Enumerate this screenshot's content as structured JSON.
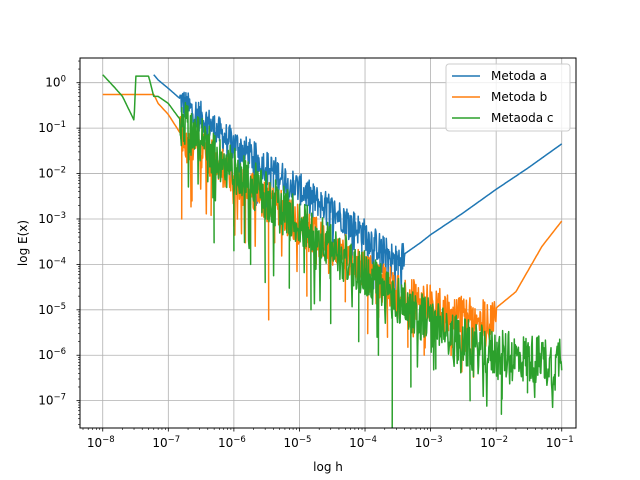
{
  "chart_data": {
    "type": "line",
    "title": "",
    "xlabel": "log h",
    "ylabel": "log E(x)",
    "xscale": "log",
    "yscale": "log",
    "xlim": [
      4.5e-09,
      0.165
    ],
    "ylim": [
      2.5e-08,
      3.5
    ],
    "grid": true,
    "legend_position": "top-right",
    "x_ticks": [
      {
        "value": 1e-08,
        "base": "10",
        "exp": "−8"
      },
      {
        "value": 1e-07,
        "base": "10",
        "exp": "−7"
      },
      {
        "value": 1e-06,
        "base": "10",
        "exp": "−6"
      },
      {
        "value": 1e-05,
        "base": "10",
        "exp": "−5"
      },
      {
        "value": 0.0001,
        "base": "10",
        "exp": "−4"
      },
      {
        "value": 0.001,
        "base": "10",
        "exp": "−3"
      },
      {
        "value": 0.01,
        "base": "10",
        "exp": "−2"
      },
      {
        "value": 0.1,
        "base": "10",
        "exp": "−1"
      }
    ],
    "y_ticks": [
      {
        "value": 1,
        "base": "10",
        "exp": "0"
      },
      {
        "value": 0.1,
        "base": "10",
        "exp": "−1"
      },
      {
        "value": 0.01,
        "base": "10",
        "exp": "−2"
      },
      {
        "value": 0.001,
        "base": "10",
        "exp": "−3"
      },
      {
        "value": 0.0001,
        "base": "10",
        "exp": "−4"
      },
      {
        "value": 1e-05,
        "base": "10",
        "exp": "−5"
      },
      {
        "value": 1e-06,
        "base": "10",
        "exp": "−6"
      },
      {
        "value": 1e-07,
        "base": "10",
        "exp": "−7"
      }
    ],
    "series": [
      {
        "name": "Metoda a",
        "color": "#1f77b4",
        "points": [
          [
            6e-08,
            1.5
          ],
          [
            7e-08,
            1.15
          ],
          [
            1e-07,
            0.75
          ],
          [
            1.5e-07,
            0.45
          ],
          [
            2e-07,
            0.3
          ],
          [
            3e-07,
            0.2
          ],
          [
            5e-07,
            0.11
          ],
          [
            7e-07,
            0.07
          ],
          [
            1e-06,
            0.05
          ],
          [
            2e-06,
            0.025
          ],
          [
            5e-06,
            0.01
          ],
          [
            1e-05,
            0.005
          ],
          [
            2e-05,
            0.0025
          ],
          [
            5e-05,
            0.0011
          ],
          [
            0.0001,
            0.0005
          ],
          [
            0.0002,
            0.0002
          ],
          [
            0.0003,
            0.00013
          ],
          [
            0.0004,
            0.00017
          ],
          [
            0.0007,
            0.0003
          ],
          [
            0.001,
            0.00045
          ],
          [
            0.003,
            0.0013
          ],
          [
            0.01,
            0.0045
          ],
          [
            0.03,
            0.013
          ],
          [
            0.1,
            0.045
          ]
        ],
        "noise": 0.35,
        "dips": [
          [
            9e-07,
            0.006
          ],
          [
            1.2e-06,
            0.004
          ],
          [
            2.2e-06,
            0.002
          ],
          [
            4e-06,
            0.001
          ],
          [
            8e-06,
            0.0006
          ],
          [
            1.6e-05,
            0.0004
          ],
          [
            5e-05,
            0.0002
          ],
          [
            9e-05,
            8e-05
          ],
          [
            0.00017,
            6e-05
          ],
          [
            0.00032,
            5e-05
          ]
        ]
      },
      {
        "name": "Metoda b",
        "color": "#ff7f0e",
        "points": [
          [
            1e-08,
            0.55
          ],
          [
            2e-08,
            0.55
          ],
          [
            4e-08,
            0.55
          ],
          [
            6e-08,
            0.55
          ],
          [
            7e-08,
            0.35
          ],
          [
            1e-07,
            0.2
          ],
          [
            1.5e-07,
            0.08
          ],
          [
            2e-07,
            0.05
          ],
          [
            3e-07,
            0.035
          ],
          [
            5e-07,
            0.02
          ],
          [
            1e-06,
            0.01
          ],
          [
            2e-06,
            0.004
          ],
          [
            5e-06,
            0.0018
          ],
          [
            1e-05,
            0.0008
          ],
          [
            2e-05,
            0.0004
          ],
          [
            5e-05,
            0.0002
          ],
          [
            0.0001,
            8e-05
          ],
          [
            0.0002,
            4e-05
          ],
          [
            0.0005,
            2e-05
          ],
          [
            0.001,
            1.4e-05
          ],
          [
            0.003,
            8e-06
          ],
          [
            0.006,
            7e-06
          ],
          [
            0.008,
            7e-06
          ],
          [
            0.01,
            1.1e-05
          ],
          [
            0.02,
            2.5e-05
          ],
          [
            0.05,
            0.00025
          ],
          [
            0.1,
            0.0009
          ]
        ],
        "noise": 0.45,
        "dips": [
          [
            1.6e-07,
            0.001
          ],
          [
            2.3e-07,
            0.0025
          ],
          [
            4.5e-07,
            0.0012
          ],
          [
            1e-06,
            0.0007
          ],
          [
            1.5e-06,
            0.0003
          ],
          [
            3.4e-06,
            6e-06
          ],
          [
            4.2e-06,
            0.0003
          ],
          [
            1.3e-05,
            2e-05
          ],
          [
            1.8e-05,
            0.0001
          ],
          [
            5e-05,
            1.5e-05
          ],
          [
            0.00011,
            3e-06
          ],
          [
            0.00022,
            2.5e-06
          ],
          [
            0.00045,
            1.5e-06
          ],
          [
            0.0008,
            1e-06
          ]
        ]
      },
      {
        "name": "Metaoda c",
        "color": "#2ca02c",
        "points": [
          [
            1e-08,
            1.5
          ],
          [
            1.5e-08,
            0.8
          ],
          [
            2e-08,
            0.5
          ],
          [
            3e-08,
            0.15
          ],
          [
            3.2e-08,
            1.4
          ],
          [
            5e-08,
            1.4
          ],
          [
            6e-08,
            0.5
          ],
          [
            7e-08,
            0.5
          ],
          [
            1e-07,
            0.35
          ],
          [
            1.4e-07,
            0.18
          ],
          [
            2e-07,
            0.1
          ],
          [
            3e-07,
            0.06
          ],
          [
            5e-07,
            0.03
          ],
          [
            1e-06,
            0.012
          ],
          [
            2e-06,
            0.006
          ],
          [
            5e-06,
            0.002
          ],
          [
            1e-05,
            0.0009
          ],
          [
            2e-05,
            0.0004
          ],
          [
            5e-05,
            0.00015
          ],
          [
            0.0001,
            7e-05
          ],
          [
            0.0002,
            3e-05
          ],
          [
            0.0005,
            1.2e-05
          ],
          [
            0.001,
            6e-06
          ],
          [
            0.002,
            3e-06
          ],
          [
            0.005,
            1.6e-06
          ],
          [
            0.01,
            1.2e-06
          ],
          [
            0.02,
            1e-06
          ],
          [
            0.05,
            9e-07
          ],
          [
            0.08,
            6e-07
          ],
          [
            0.1,
            1.8e-06
          ]
        ],
        "noise": 0.55,
        "dips": [
          [
            5e-07,
            0.0003
          ],
          [
            1e-06,
            0.0002
          ],
          [
            1.8e-06,
            0.0001
          ],
          [
            3e-06,
            4e-05
          ],
          [
            7e-06,
            3e-05
          ],
          [
            1.5e-05,
            1e-05
          ],
          [
            3e-05,
            5e-06
          ],
          [
            8e-05,
            2e-06
          ],
          [
            0.00016,
            1e-06
          ],
          [
            0.00026,
            2e-08
          ],
          [
            0.0005,
            2e-07
          ],
          [
            0.0012,
            5e-07
          ],
          [
            0.004,
            1e-07
          ],
          [
            0.012,
            5e-08
          ],
          [
            0.03,
            1.5e-07
          ],
          [
            0.06,
            3e-07
          ]
        ]
      }
    ]
  }
}
